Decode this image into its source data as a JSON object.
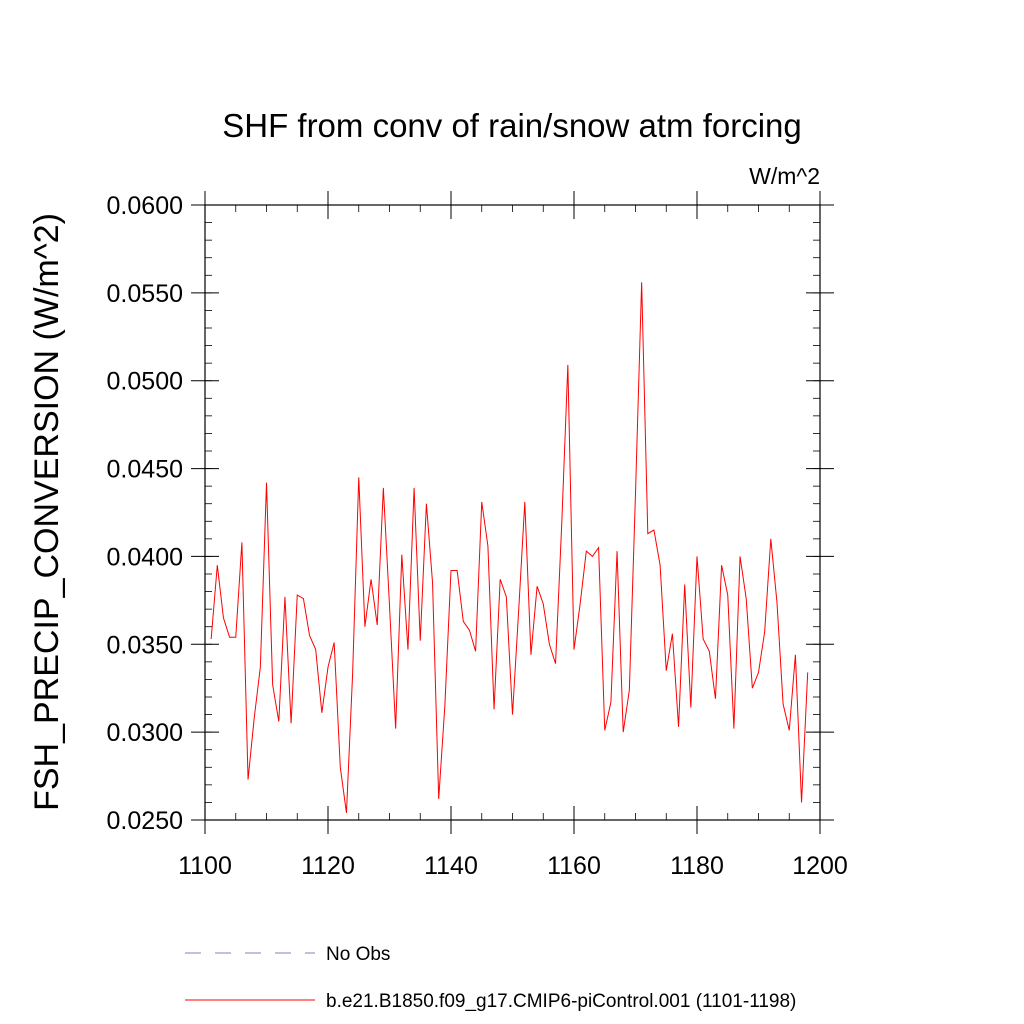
{
  "chart_data": {
    "type": "line",
    "title": "SHF from conv of rain/snow atm forcing",
    "units_label": "W/m^2",
    "ylabel": "FSH_PRECIP_CONVERSION  (W/m^2)",
    "xlabel": "",
    "xlim": [
      1100,
      1200
    ],
    "ylim": [
      0.025,
      0.06
    ],
    "x_ticks": [
      1100,
      1120,
      1140,
      1160,
      1180,
      1200
    ],
    "x_tick_labels": [
      "1100",
      "1120",
      "1140",
      "1160",
      "1180",
      "1200"
    ],
    "y_ticks": [
      0.025,
      0.03,
      0.035,
      0.04,
      0.045,
      0.05,
      0.055,
      0.06
    ],
    "y_tick_labels": [
      "0.0250",
      "0.0300",
      "0.0350",
      "0.0400",
      "0.0450",
      "0.0500",
      "0.0550",
      "0.0600"
    ],
    "series": [
      {
        "name": "b.e21.B1850.f09_g17.CMIP6-piControl.001 (1101-1198)",
        "color": "#ff0000",
        "x": [
          1101,
          1102,
          1103,
          1104,
          1105,
          1106,
          1107,
          1108,
          1109,
          1110,
          1111,
          1112,
          1113,
          1114,
          1115,
          1116,
          1117,
          1118,
          1119,
          1120,
          1121,
          1122,
          1123,
          1124,
          1125,
          1126,
          1127,
          1128,
          1129,
          1130,
          1131,
          1132,
          1133,
          1134,
          1135,
          1136,
          1137,
          1138,
          1139,
          1140,
          1141,
          1142,
          1143,
          1144,
          1145,
          1146,
          1147,
          1148,
          1149,
          1150,
          1151,
          1152,
          1153,
          1154,
          1155,
          1156,
          1157,
          1158,
          1159,
          1160,
          1161,
          1162,
          1163,
          1164,
          1165,
          1166,
          1167,
          1168,
          1169,
          1170,
          1171,
          1172,
          1173,
          1174,
          1175,
          1176,
          1177,
          1178,
          1179,
          1180,
          1181,
          1182,
          1183,
          1184,
          1185,
          1186,
          1187,
          1188,
          1189,
          1190,
          1191,
          1192,
          1193,
          1194,
          1195,
          1196,
          1197,
          1198
        ],
        "values": [
          0.0353,
          0.0395,
          0.0365,
          0.0354,
          0.0354,
          0.0408,
          0.0273,
          0.0308,
          0.0337,
          0.0442,
          0.0327,
          0.0306,
          0.0377,
          0.0305,
          0.0378,
          0.0376,
          0.0355,
          0.0347,
          0.0311,
          0.0337,
          0.0351,
          0.028,
          0.0254,
          0.0333,
          0.0445,
          0.036,
          0.0387,
          0.0361,
          0.0439,
          0.0372,
          0.0302,
          0.0401,
          0.0347,
          0.0439,
          0.0352,
          0.043,
          0.0385,
          0.0262,
          0.0315,
          0.0392,
          0.0392,
          0.0363,
          0.0358,
          0.0346,
          0.0431,
          0.0406,
          0.0313,
          0.0387,
          0.0377,
          0.031,
          0.0369,
          0.0431,
          0.0344,
          0.0383,
          0.0373,
          0.035,
          0.0339,
          0.0418,
          0.0509,
          0.0347,
          0.0373,
          0.0403,
          0.04,
          0.0405,
          0.0301,
          0.0317,
          0.0403,
          0.03,
          0.0324,
          0.0436,
          0.0556,
          0.0413,
          0.0415,
          0.0395,
          0.0335,
          0.0356,
          0.0303,
          0.0384,
          0.0314,
          0.04,
          0.0353,
          0.0346,
          0.0319,
          0.0395,
          0.0378,
          0.0302,
          0.04,
          0.0376,
          0.0325,
          0.0334,
          0.0357,
          0.041,
          0.0374,
          0.0316,
          0.0301,
          0.0344,
          0.026,
          0.0334
        ]
      }
    ],
    "legend": [
      {
        "label": "No Obs",
        "color": "#8080c0",
        "style": "dashed"
      },
      {
        "label": "b.e21.B1850.f09_g17.CMIP6-piControl.001 (1101-1198)",
        "color": "#ff0000",
        "style": "solid"
      }
    ]
  }
}
